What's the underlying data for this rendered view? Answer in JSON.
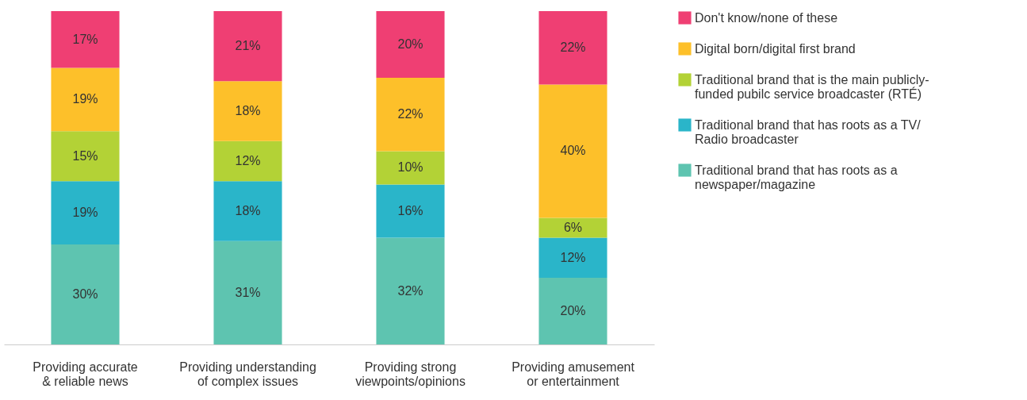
{
  "chart_data": {
    "type": "bar",
    "stacked": true,
    "categories": [
      "Providing accurate\n& reliable news",
      "Providing understanding\nof complex issues",
      "Providing strong\nviewpoints/opinions",
      "Providing amusement\nor entertainment"
    ],
    "series": [
      {
        "name": "Traditional brand that has roots as a\nnewspaper/magazine",
        "color": "#5ec4b0",
        "values": [
          30,
          31,
          32,
          20
        ],
        "value_labels": [
          "30%",
          "31%",
          "32%",
          "20%"
        ]
      },
      {
        "name": "Traditional brand that has roots as a TV/\nRadio broadcaster",
        "color": "#2ab5c9",
        "values": [
          19,
          18,
          16,
          12
        ],
        "value_labels": [
          "19%",
          "18%",
          "16%",
          "12%"
        ]
      },
      {
        "name": "Traditional brand that is the main publicly-\nfunded pubilc service broadcaster (RTÉ)",
        "color": "#b3d236",
        "values": [
          15,
          12,
          10,
          6
        ],
        "value_labels": [
          "15%",
          "12%",
          "10%",
          "6%"
        ]
      },
      {
        "name": "Digital born/digital first brand",
        "color": "#fdc02a",
        "values": [
          19,
          18,
          22,
          40
        ],
        "value_labels": [
          "19%",
          "18%",
          "22%",
          "40%"
        ]
      },
      {
        "name": "Don't know/none of these",
        "color": "#ef3f73",
        "values": [
          17,
          21,
          20,
          22
        ],
        "value_labels": [
          "17%",
          "21%",
          "20%",
          "22%"
        ]
      }
    ],
    "tick_labels": "x",
    "legend": "right"
  }
}
